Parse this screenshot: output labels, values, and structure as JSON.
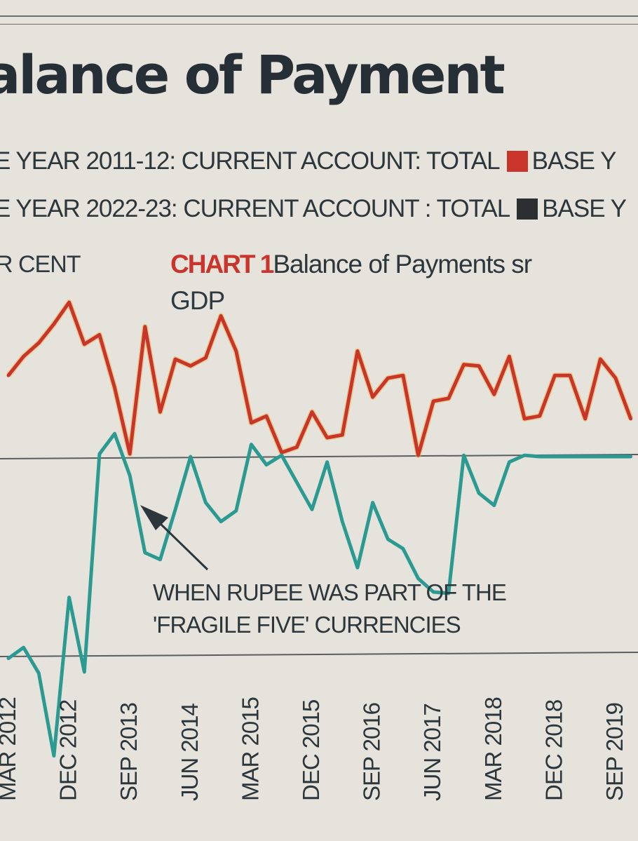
{
  "headline": "alance of Payment",
  "legend": [
    {
      "text": "E YEAR 2011-12: CURRENT ACCOUNT: TOTAL",
      "color": "#c9342b",
      "trail": "BASE Y"
    },
    {
      "text": "E YEAR 2022-23: CURRENT ACCOUNT : TOTAL",
      "color": "#2b2f31",
      "trail": "BASE Y"
    }
  ],
  "unit_label": "R CENT",
  "chart_tag": {
    "number": "CHART 1",
    "description": "Balance of Payments sr",
    "line2": "GDP"
  },
  "annotation": [
    "WHEN RUPEE WAS PART OF THE",
    "'FRAGILE FIVE' CURRENCIES"
  ],
  "chart_data": {
    "type": "line",
    "categories": [
      "MAR 2012",
      "DEC 2012",
      "SEP 2013",
      "JUN 2014",
      "MAR 2015",
      "DEC 2015",
      "SEP 2016",
      "JUN 2017",
      "MAR 2018",
      "DEC 2018",
      "SEP 2019"
    ],
    "series": [
      {
        "color": "#c9342b",
        "x": [
          0,
          0.25,
          0.5,
          0.75,
          1,
          1.25,
          1.5,
          1.75,
          2,
          2.25,
          2.5,
          2.75,
          3,
          3.25,
          3.5,
          3.75,
          4,
          4.25,
          4.5,
          4.75,
          5,
          5.25,
          5.5,
          5.75,
          6,
          6.25,
          6.5,
          6.75,
          7,
          7.25,
          7.5,
          7.75,
          8,
          8.25,
          8.5,
          8.75,
          9,
          9.25,
          9.5,
          9.75,
          10,
          10.25
        ],
        "values": [
          0.6,
          0.74,
          0.84,
          0.98,
          1.14,
          0.83,
          0.9,
          0.51,
          0.02,
          0.96,
          0.33,
          0.72,
          0.67,
          0.73,
          1.04,
          0.78,
          0.25,
          0.3,
          0.03,
          0.07,
          0.33,
          0.14,
          0.16,
          0.78,
          0.44,
          0.58,
          0.6,
          0.01,
          0.41,
          0.43,
          0.68,
          0.67,
          0.46,
          0.74,
          0.28,
          0.3,
          0.6,
          0.6,
          0.28,
          0.72,
          0.58,
          0.28
        ]
      },
      {
        "color": "#2b9a91",
        "x": [
          0,
          0.25,
          0.5,
          0.75,
          1,
          1.25,
          1.5,
          1.75,
          2,
          2.25,
          2.5,
          2.75,
          3,
          3.25,
          3.5,
          3.75,
          4,
          4.25,
          4.5,
          4.75,
          5,
          5.25,
          5.5,
          5.75,
          6,
          6.25,
          6.5,
          6.75,
          7,
          7.25,
          7.5,
          7.75,
          8,
          8.25,
          8.5,
          8.75,
          9,
          9.25,
          9.5,
          9.75,
          10,
          10.25
        ],
        "values": [
          -1.49,
          -1.41,
          -1.6,
          -2.21,
          -1.04,
          -1.59,
          0.02,
          0.17,
          -0.14,
          -0.71,
          -0.76,
          -0.39,
          0.0,
          -0.34,
          -0.48,
          -0.4,
          0.09,
          -0.06,
          0.01,
          -0.19,
          -0.39,
          -0.04,
          -0.48,
          -0.82,
          -0.34,
          -0.61,
          -0.68,
          -0.9,
          -1.0,
          -1.01,
          0.01,
          -0.27,
          -0.36,
          -0.04,
          0.01,
          0.0,
          0.0,
          0.0,
          0.0,
          0.0,
          0.0,
          0.0
        ]
      }
    ],
    "ylim": [
      -2.6,
      1.5
    ]
  }
}
